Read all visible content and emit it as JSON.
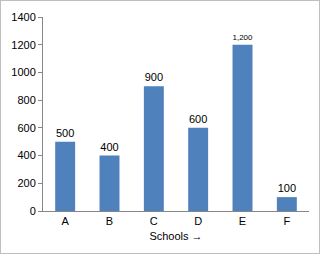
{
  "chart_data": {
    "type": "bar",
    "x_label": "Schools →",
    "categories": [
      "A",
      "B",
      "C",
      "D",
      "E",
      "F"
    ],
    "values": [
      500,
      400,
      900,
      600,
      1200,
      100
    ],
    "value_labels": [
      "500",
      "400",
      "900",
      "600",
      "1,200",
      "100"
    ],
    "data_labels": true,
    "color": "#4f81bd",
    "ylim": [
      0,
      1400
    ],
    "yticks": [
      0,
      200,
      400,
      600,
      800,
      1000,
      1200,
      1400
    ],
    "grid": false
  }
}
